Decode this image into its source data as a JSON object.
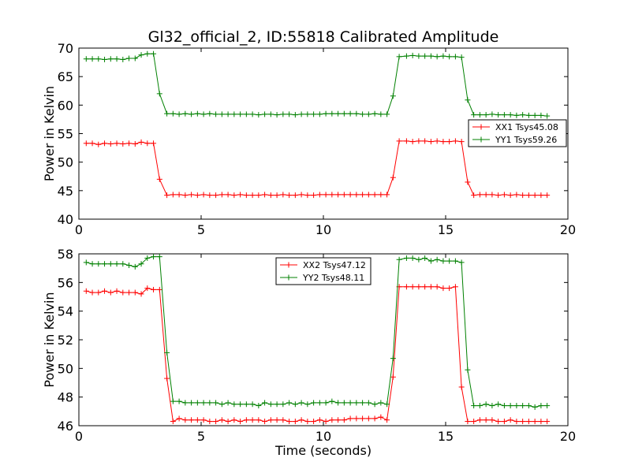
{
  "chart_data": [
    {
      "type": "line",
      "title": "Gl32_official_2, ID:55818 Calibrated Amplitude",
      "xlabel": "",
      "ylabel": "Power in Kelvin",
      "xlim": [
        0,
        20
      ],
      "ylim": [
        40,
        70
      ],
      "xticks": [
        "0",
        "5",
        "10",
        "15",
        "20"
      ],
      "yticks": [
        "40",
        "45",
        "50",
        "55",
        "60",
        "65",
        "70"
      ],
      "grid": false,
      "legend_position": "center-right",
      "x": [
        0.3,
        0.55,
        0.8,
        1.05,
        1.3,
        1.55,
        1.8,
        2.05,
        2.3,
        2.55,
        2.8,
        3.05,
        3.3,
        3.6,
        3.85,
        4.1,
        4.35,
        4.6,
        4.85,
        5.1,
        5.35,
        5.6,
        5.85,
        6.1,
        6.35,
        6.6,
        6.85,
        7.1,
        7.35,
        7.6,
        7.85,
        8.1,
        8.35,
        8.6,
        8.85,
        9.1,
        9.35,
        9.6,
        9.85,
        10.1,
        10.35,
        10.6,
        10.85,
        11.1,
        11.35,
        11.6,
        11.85,
        12.1,
        12.35,
        12.6,
        12.85,
        13.1,
        13.4,
        13.65,
        13.9,
        14.15,
        14.4,
        14.65,
        14.9,
        15.15,
        15.4,
        15.65,
        15.9,
        16.15,
        16.4,
        16.65,
        16.9,
        17.15,
        17.4,
        17.65,
        17.9,
        18.15,
        18.4,
        18.65,
        18.9,
        19.15
      ],
      "series": [
        {
          "name": "XX1 Tsys45.08",
          "color": "#ff0000",
          "values": [
            53.3,
            53.3,
            53.1,
            53.3,
            53.2,
            53.3,
            53.2,
            53.3,
            53.2,
            53.5,
            53.3,
            53.3,
            47.0,
            44.2,
            44.3,
            44.3,
            44.2,
            44.3,
            44.2,
            44.3,
            44.2,
            44.2,
            44.3,
            44.3,
            44.2,
            44.3,
            44.2,
            44.2,
            44.2,
            44.3,
            44.2,
            44.2,
            44.3,
            44.2,
            44.2,
            44.3,
            44.2,
            44.2,
            44.3,
            44.3,
            44.3,
            44.3,
            44.3,
            44.3,
            44.3,
            44.3,
            44.3,
            44.3,
            44.3,
            44.3,
            47.3,
            53.7,
            53.7,
            53.6,
            53.7,
            53.7,
            53.6,
            53.7,
            53.6,
            53.6,
            53.7,
            53.6,
            46.5,
            44.2,
            44.3,
            44.3,
            44.3,
            44.2,
            44.3,
            44.2,
            44.3,
            44.2,
            44.2,
            44.2,
            44.2,
            44.2
          ]
        },
        {
          "name": "YY1 Tsys59.26",
          "color": "#008000",
          "values": [
            68.1,
            68.1,
            68.1,
            68.0,
            68.1,
            68.1,
            68.0,
            68.2,
            68.2,
            68.8,
            69.0,
            69.0,
            62.0,
            58.5,
            58.5,
            58.4,
            58.5,
            58.4,
            58.5,
            58.4,
            58.5,
            58.4,
            58.4,
            58.4,
            58.4,
            58.4,
            58.4,
            58.4,
            58.3,
            58.4,
            58.4,
            58.3,
            58.4,
            58.4,
            58.3,
            58.4,
            58.4,
            58.4,
            58.4,
            58.5,
            58.5,
            58.5,
            58.5,
            58.5,
            58.5,
            58.4,
            58.4,
            58.5,
            58.4,
            58.4,
            61.6,
            68.5,
            68.6,
            68.7,
            68.6,
            68.6,
            68.6,
            68.5,
            68.6,
            68.5,
            68.5,
            68.4,
            60.9,
            58.3,
            58.3,
            58.3,
            58.4,
            58.3,
            58.3,
            58.3,
            58.2,
            58.3,
            58.2,
            58.2,
            58.2,
            58.1
          ]
        }
      ]
    },
    {
      "type": "line",
      "title": "",
      "xlabel": "Time (seconds)",
      "ylabel": "Power in Kelvin",
      "xlim": [
        0,
        20
      ],
      "ylim": [
        46,
        58
      ],
      "xticks": [
        "0",
        "5",
        "10",
        "15",
        "20"
      ],
      "yticks": [
        "46",
        "48",
        "50",
        "52",
        "54",
        "56",
        "58"
      ],
      "grid": false,
      "legend_position": "top-center",
      "x": [
        0.3,
        0.55,
        0.8,
        1.05,
        1.3,
        1.55,
        1.8,
        2.05,
        2.3,
        2.55,
        2.8,
        3.05,
        3.3,
        3.6,
        3.85,
        4.1,
        4.35,
        4.6,
        4.85,
        5.1,
        5.35,
        5.6,
        5.85,
        6.1,
        6.35,
        6.6,
        6.85,
        7.1,
        7.35,
        7.6,
        7.85,
        8.1,
        8.35,
        8.6,
        8.85,
        9.1,
        9.35,
        9.6,
        9.85,
        10.1,
        10.35,
        10.6,
        10.85,
        11.1,
        11.35,
        11.6,
        11.85,
        12.1,
        12.35,
        12.6,
        12.85,
        13.1,
        13.4,
        13.65,
        13.9,
        14.15,
        14.4,
        14.65,
        14.9,
        15.15,
        15.4,
        15.65,
        15.9,
        16.15,
        16.4,
        16.65,
        16.9,
        17.15,
        17.4,
        17.65,
        17.9,
        18.15,
        18.4,
        18.65,
        18.9,
        19.15
      ],
      "series": [
        {
          "name": "XX2 Tsys47.12",
          "color": "#ff0000",
          "values": [
            55.4,
            55.3,
            55.3,
            55.4,
            55.3,
            55.4,
            55.3,
            55.3,
            55.3,
            55.2,
            55.6,
            55.5,
            55.5,
            49.3,
            46.3,
            46.5,
            46.4,
            46.4,
            46.4,
            46.4,
            46.3,
            46.3,
            46.4,
            46.3,
            46.4,
            46.3,
            46.4,
            46.4,
            46.4,
            46.3,
            46.4,
            46.4,
            46.4,
            46.3,
            46.3,
            46.4,
            46.3,
            46.3,
            46.4,
            46.3,
            46.4,
            46.4,
            46.4,
            46.5,
            46.5,
            46.5,
            46.5,
            46.5,
            46.6,
            46.4,
            49.4,
            55.7,
            55.7,
            55.7,
            55.7,
            55.7,
            55.7,
            55.7,
            55.6,
            55.6,
            55.7,
            48.7,
            46.3,
            46.3,
            46.4,
            46.4,
            46.4,
            46.3,
            46.3,
            46.4,
            46.3,
            46.3,
            46.3,
            46.3,
            46.3,
            46.3
          ]
        },
        {
          "name": "YY2 Tsys48.11",
          "color": "#008000",
          "values": [
            57.4,
            57.3,
            57.3,
            57.3,
            57.3,
            57.3,
            57.3,
            57.2,
            57.1,
            57.3,
            57.7,
            57.8,
            57.8,
            51.1,
            47.7,
            47.7,
            47.6,
            47.6,
            47.6,
            47.6,
            47.6,
            47.6,
            47.5,
            47.6,
            47.5,
            47.5,
            47.5,
            47.5,
            47.4,
            47.6,
            47.5,
            47.5,
            47.5,
            47.6,
            47.5,
            47.6,
            47.5,
            47.6,
            47.6,
            47.6,
            47.7,
            47.6,
            47.6,
            47.6,
            47.6,
            47.6,
            47.6,
            47.5,
            47.6,
            47.5,
            50.7,
            57.6,
            57.7,
            57.7,
            57.6,
            57.7,
            57.5,
            57.6,
            57.5,
            57.5,
            57.5,
            57.4,
            49.9,
            47.4,
            47.4,
            47.5,
            47.4,
            47.5,
            47.4,
            47.4,
            47.4,
            47.4,
            47.4,
            47.3,
            47.4,
            47.4
          ]
        }
      ]
    }
  ]
}
